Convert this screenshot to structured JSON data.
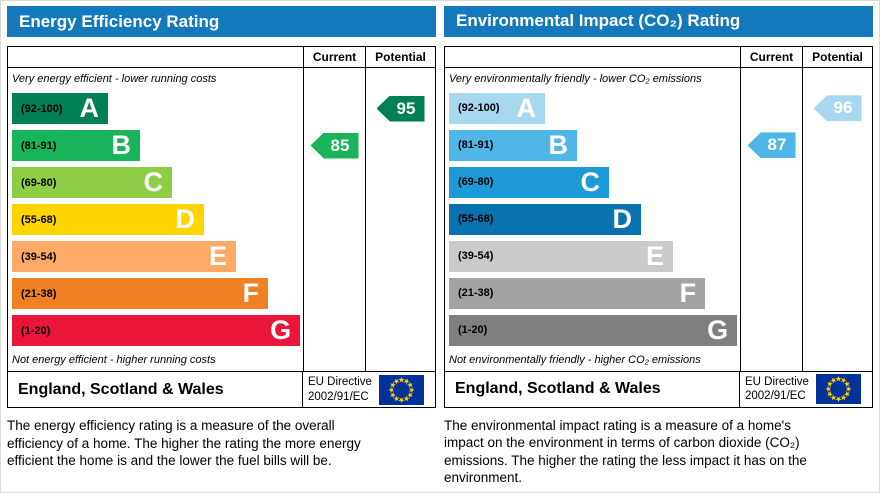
{
  "page": {
    "accent_color": "#1478bd"
  },
  "panels": [
    {
      "title": "Energy Efficiency Rating",
      "columns": {
        "current": "Current",
        "potential": "Potential"
      },
      "top_note": "Very energy efficient - lower running costs",
      "bottom_note": "Not energy efficient - higher running costs",
      "bands": [
        {
          "letter": "A",
          "range": "(92-100)",
          "color": "#008054",
          "width_pct": 33
        },
        {
          "letter": "B",
          "range": "(81-91)",
          "color": "#19b459",
          "width_pct": 44
        },
        {
          "letter": "C",
          "range": "(69-80)",
          "color": "#8dce46",
          "width_pct": 55
        },
        {
          "letter": "D",
          "range": "(55-68)",
          "color": "#ffd500",
          "width_pct": 66
        },
        {
          "letter": "E",
          "range": "(39-54)",
          "color": "#fcaa65",
          "width_pct": 77
        },
        {
          "letter": "F",
          "range": "(21-38)",
          "color": "#ef8023",
          "width_pct": 88
        },
        {
          "letter": "G",
          "range": "(1-20)",
          "color": "#e9153b",
          "width_pct": 99
        }
      ],
      "current": {
        "value": 85,
        "band_index": 1,
        "color": "#19b459"
      },
      "potential": {
        "value": 95,
        "band_index": 0,
        "color": "#008054"
      },
      "footer": {
        "region": "England, Scotland & Wales",
        "directive_line1": "EU Directive",
        "directive_line2": "2002/91/EC"
      },
      "description": "The energy efficiency rating is a measure of the overall efficiency of a home. The higher the rating the more energy efficient the home is and the lower the fuel bills will be."
    },
    {
      "title": "Environmental Impact (CO₂) Rating",
      "columns": {
        "current": "Current",
        "potential": "Potential"
      },
      "top_note": "Very environmentally friendly - lower CO₂ emissions",
      "bottom_note": "Not environmentally friendly - higher CO₂ emissions",
      "bands": [
        {
          "letter": "A",
          "range": "(92-100)",
          "color": "#a8d8f0",
          "width_pct": 33
        },
        {
          "letter": "B",
          "range": "(81-91)",
          "color": "#4fb6e7",
          "width_pct": 44
        },
        {
          "letter": "C",
          "range": "(69-80)",
          "color": "#1d9ad6",
          "width_pct": 55
        },
        {
          "letter": "D",
          "range": "(55-68)",
          "color": "#0b72b0",
          "width_pct": 66
        },
        {
          "letter": "E",
          "range": "(39-54)",
          "color": "#cacaca",
          "width_pct": 77
        },
        {
          "letter": "F",
          "range": "(21-38)",
          "color": "#a3a3a3",
          "width_pct": 88
        },
        {
          "letter": "G",
          "range": "(1-20)",
          "color": "#7f7f7f",
          "width_pct": 99
        }
      ],
      "current": {
        "value": 87,
        "band_index": 1,
        "color": "#4fb6e7"
      },
      "potential": {
        "value": 96,
        "band_index": 0,
        "color": "#a8d8f0"
      },
      "footer": {
        "region": "England, Scotland & Wales",
        "directive_line1": "EU Directive",
        "directive_line2": "2002/91/EC"
      },
      "description": "The environmental impact rating is a measure of a home's impact on the environment in terms of carbon dioxide (CO₂) emissions. The higher the rating the less impact it has on the environment."
    }
  ],
  "chart_data": [
    {
      "type": "bar",
      "title": "Energy Efficiency Rating",
      "categories": [
        "A",
        "B",
        "C",
        "D",
        "E",
        "F",
        "G"
      ],
      "band_ranges": [
        "92-100",
        "81-91",
        "69-80",
        "55-68",
        "39-54",
        "21-38",
        "1-20"
      ],
      "series": [
        {
          "name": "Current",
          "value": 85,
          "band": "B"
        },
        {
          "name": "Potential",
          "value": 95,
          "band": "A"
        }
      ],
      "xlim": [
        1,
        100
      ],
      "notes": [
        "Very energy efficient - lower running costs",
        "Not energy efficient - higher running costs"
      ],
      "region": "England, Scotland & Wales",
      "directive": "EU Directive 2002/91/EC"
    },
    {
      "type": "bar",
      "title": "Environmental Impact (CO₂) Rating",
      "categories": [
        "A",
        "B",
        "C",
        "D",
        "E",
        "F",
        "G"
      ],
      "band_ranges": [
        "92-100",
        "81-91",
        "69-80",
        "55-68",
        "39-54",
        "21-38",
        "1-20"
      ],
      "series": [
        {
          "name": "Current",
          "value": 87,
          "band": "B"
        },
        {
          "name": "Potential",
          "value": 96,
          "band": "A"
        }
      ],
      "xlim": [
        1,
        100
      ],
      "notes": [
        "Very environmentally friendly - lower CO₂ emissions",
        "Not environmentally friendly - higher CO₂ emissions"
      ],
      "region": "England, Scotland & Wales",
      "directive": "EU Directive 2002/91/EC"
    }
  ]
}
